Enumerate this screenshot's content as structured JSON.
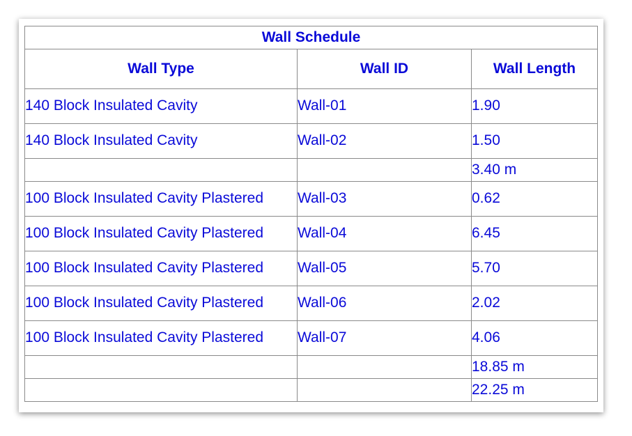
{
  "schedule": {
    "title": "Wall Schedule",
    "columns": [
      "Wall Type",
      "Wall ID",
      "Wall Length"
    ],
    "rows": [
      {
        "kind": "data",
        "wall_type": "140 Block Insulated Cavity",
        "wall_id": "Wall-01",
        "wall_length": "1.90"
      },
      {
        "kind": "data",
        "wall_type": "140 Block Insulated Cavity",
        "wall_id": "Wall-02",
        "wall_length": "1.50"
      },
      {
        "kind": "subtotal",
        "wall_type": "",
        "wall_id": "",
        "wall_length": "3.40 m"
      },
      {
        "kind": "data",
        "wall_type": "100 Block Insulated Cavity Plastered",
        "wall_id": "Wall-03",
        "wall_length": "0.62"
      },
      {
        "kind": "data",
        "wall_type": "100 Block Insulated Cavity Plastered",
        "wall_id": "Wall-04",
        "wall_length": "6.45"
      },
      {
        "kind": "data",
        "wall_type": "100 Block Insulated Cavity Plastered",
        "wall_id": "Wall-05",
        "wall_length": "5.70"
      },
      {
        "kind": "data",
        "wall_type": "100 Block Insulated Cavity Plastered",
        "wall_id": "Wall-06",
        "wall_length": "2.02"
      },
      {
        "kind": "data",
        "wall_type": "100 Block Insulated Cavity Plastered",
        "wall_id": "Wall-07",
        "wall_length": "4.06"
      },
      {
        "kind": "subtotal",
        "wall_type": "",
        "wall_id": "",
        "wall_length": "18.85 m"
      },
      {
        "kind": "grand-total",
        "wall_type": "",
        "wall_id": "",
        "wall_length": "22.25 m"
      }
    ],
    "text_color": "#0a0ad8",
    "border_color": "#8a8a8a"
  }
}
